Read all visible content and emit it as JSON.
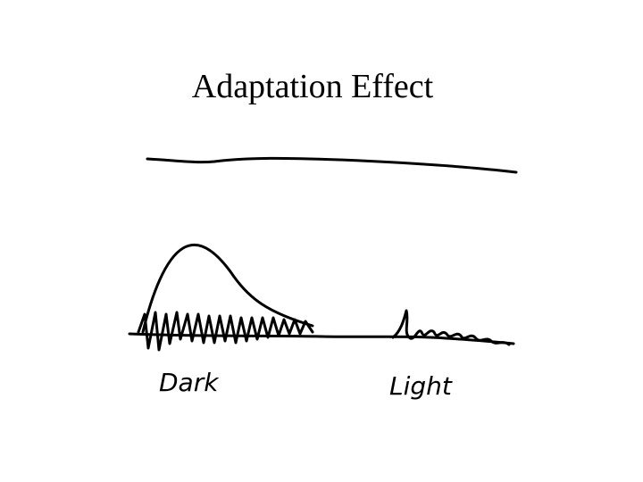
{
  "title": "Adaptation Effect",
  "labels": [
    "Dark",
    "Light"
  ]
}
